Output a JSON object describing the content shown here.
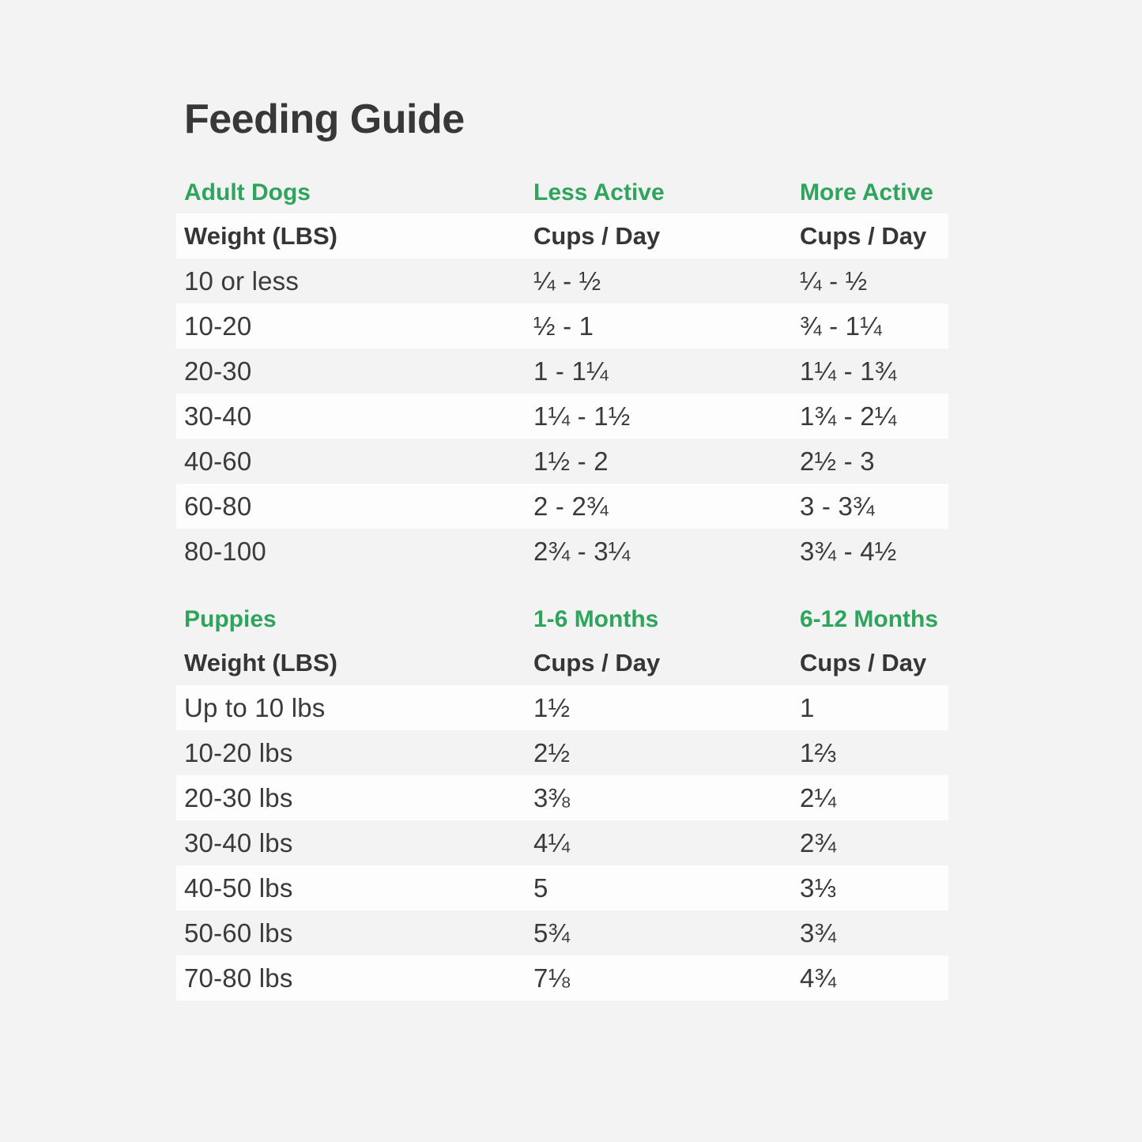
{
  "title": "Feeding Guide",
  "colors": {
    "accent_green": "#2EA45C",
    "text_dark": "#3A3A3A",
    "page_background": "#F3F3F4",
    "row_stripe_white": "#FDFDFE"
  },
  "tables": [
    {
      "section_labels": [
        "Adult Dogs",
        "Less Active",
        "More Active"
      ],
      "header": [
        "Weight (LBS)",
        "Cups / Day",
        "Cups / Day"
      ],
      "rows": [
        [
          "10 or less",
          "¼ - ½",
          "¼ - ½"
        ],
        [
          "10-20",
          "½ - 1",
          "¾ - 1¼"
        ],
        [
          "20-30",
          "1 - 1¼",
          "1¼ - 1¾"
        ],
        [
          "30-40",
          "1¼ - 1½",
          "1¾ - 2¼"
        ],
        [
          "40-60",
          "1½ - 2",
          "2½ - 3"
        ],
        [
          "60-80",
          "2 - 2¾",
          "3 - 3¾"
        ],
        [
          "80-100",
          "2¾ - 3¼",
          "3¾ - 4½"
        ]
      ]
    },
    {
      "section_labels": [
        "Puppies",
        "1-6 Months",
        "6-12 Months"
      ],
      "header": [
        "Weight (LBS)",
        "Cups / Day",
        "Cups / Day"
      ],
      "rows": [
        [
          "Up to 10 lbs",
          "1½",
          "1"
        ],
        [
          "10-20 lbs",
          "2½",
          "1⅔"
        ],
        [
          "20-30 lbs",
          "3⅜",
          "2¼"
        ],
        [
          "30-40 lbs",
          "4¼",
          "2¾"
        ],
        [
          "40-50 lbs",
          "5",
          "3⅓"
        ],
        [
          "50-60 lbs",
          "5¾",
          "3¾"
        ],
        [
          "70-80 lbs",
          "7⅛",
          "4¾"
        ]
      ]
    }
  ]
}
